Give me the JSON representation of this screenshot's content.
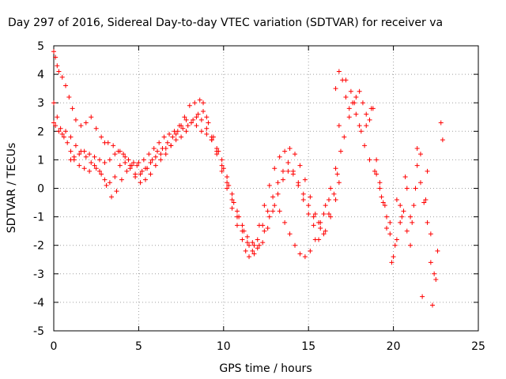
{
  "chart_data": {
    "type": "scatter",
    "title": "Day 297 of 2016, Sidereal Day-to-day VTEC variation (SDTVAR) for receiver va",
    "xlabel": "GPS time / hours",
    "ylabel": "SDTVAR / TECUs",
    "xlim": [
      0,
      25
    ],
    "ylim": [
      -5,
      5
    ],
    "xticks": [
      "0",
      "5",
      "10",
      "15",
      "20",
      "25"
    ],
    "yticks": [
      "-5",
      "-4",
      "-3",
      "-2",
      "-1",
      "0",
      "1",
      "2",
      "3",
      "4",
      "5"
    ],
    "grid": true,
    "legend": "none",
    "marker": "+",
    "color": "#ff0000",
    "series": [
      {
        "x": [
          0.0,
          0.1,
          0.2,
          0.3,
          0.5,
          0.7,
          0.9,
          1.1,
          1.3,
          1.6,
          1.9,
          2.2,
          2.5,
          2.8,
          3.0,
          3.2,
          3.5,
          3.8,
          4.1,
          4.4,
          4.7,
          5.0,
          5.3,
          5.6,
          5.9,
          6.2,
          6.5,
          6.8,
          7.1,
          7.4,
          7.7,
          8.0,
          8.3,
          8.6,
          8.8,
          9.0,
          9.3,
          9.6,
          9.9,
          10.2,
          10.5,
          10.8,
          11.1,
          11.3,
          11.5,
          11.8,
          12.1,
          12.4,
          12.7,
          13.0,
          13.3,
          13.6,
          13.9,
          14.2,
          14.5,
          14.8,
          15.1,
          15.4,
          15.7,
          16.0,
          16.3,
          16.6,
          16.8
        ],
        "y": [
          4.8,
          4.6,
          4.3,
          4.1,
          3.9,
          3.6,
          3.2,
          2.8,
          2.4,
          2.2,
          2.3,
          2.5,
          2.1,
          1.8,
          1.6,
          1.6,
          1.5,
          1.3,
          1.2,
          1.0,
          0.9,
          0.9,
          1.0,
          1.2,
          1.4,
          1.6,
          1.8,
          1.9,
          2.0,
          2.2,
          2.5,
          2.9,
          3.0,
          3.1,
          3.0,
          2.5,
          1.8,
          1.2,
          0.6,
          0.0,
          -0.7,
          -1.3,
          -1.8,
          -2.2,
          -2.4,
          -2.0,
          -1.3,
          -0.6,
          0.1,
          0.7,
          1.1,
          1.3,
          1.4,
          1.2,
          0.8,
          0.3,
          -0.3,
          -0.9,
          -1.4,
          -1.5,
          -1.0,
          -0.4,
          0.2
        ]
      },
      {
        "x": [
          0.0,
          0.2,
          0.4,
          0.6,
          0.8,
          1.0,
          1.2,
          1.5,
          1.8,
          2.1,
          2.4,
          2.7,
          3.0,
          3.3,
          3.6,
          3.9,
          4.2,
          4.5,
          4.8,
          5.1,
          5.4,
          5.7,
          6.0,
          6.3,
          6.6,
          6.9,
          7.2,
          7.5,
          7.8,
          8.1,
          8.4,
          8.7,
          9.0,
          9.3,
          9.6,
          9.9,
          10.2,
          10.5,
          10.8,
          11.1,
          11.4,
          11.7,
          12.0,
          12.3,
          12.6,
          12.9,
          13.2,
          13.5,
          13.8,
          14.1,
          14.4,
          14.7,
          15.0,
          15.3,
          15.6,
          15.9,
          16.2,
          16.5,
          16.7
        ],
        "y": [
          3.0,
          2.5,
          2.1,
          1.8,
          1.6,
          1.3,
          1.0,
          0.8,
          0.7,
          0.6,
          0.8,
          0.6,
          0.3,
          0.2,
          0.4,
          0.8,
          0.9,
          0.7,
          0.4,
          0.2,
          0.3,
          0.5,
          0.8,
          1.0,
          1.2,
          1.5,
          1.9,
          2.2,
          2.4,
          2.3,
          2.2,
          2.0,
          1.9,
          1.7,
          1.4,
          1.0,
          0.4,
          -0.2,
          -0.8,
          -1.3,
          -1.7,
          -1.9,
          -2.1,
          -1.9,
          -1.4,
          -0.8,
          -0.2,
          0.3,
          0.6,
          0.5,
          0.1,
          -0.4,
          -0.9,
          -1.3,
          -1.8,
          -1.6,
          -0.9,
          -0.2,
          0.5
        ]
      },
      {
        "x": [
          0.0,
          0.1,
          0.3,
          0.5,
          0.7,
          1.0,
          1.3,
          1.6,
          1.9,
          2.2,
          2.5,
          2.8,
          3.1,
          3.4,
          3.7,
          4.0,
          4.3,
          4.6,
          4.9,
          5.2,
          5.5,
          5.8,
          6.1,
          6.4,
          6.7,
          7.0,
          7.3,
          7.6,
          7.9,
          8.2,
          8.5,
          8.8,
          9.1,
          9.4,
          9.7,
          10.0,
          10.3,
          10.6,
          10.9,
          11.2,
          11.5,
          11.8,
          12.1,
          12.4,
          12.7,
          13.0,
          13.3,
          13.6,
          13.9,
          14.2,
          14.5,
          14.8,
          15.1,
          15.4,
          15.7,
          16.0,
          16.3,
          16.6,
          16.9
        ],
        "y": [
          2.3,
          2.2,
          2.0,
          1.9,
          2.0,
          1.8,
          1.5,
          1.3,
          1.1,
          0.9,
          0.7,
          0.5,
          0.1,
          -0.3,
          -0.1,
          0.3,
          0.6,
          0.8,
          0.8,
          0.6,
          0.7,
          1.0,
          1.3,
          1.4,
          1.6,
          1.8,
          2.0,
          2.1,
          2.2,
          2.4,
          2.6,
          2.7,
          2.3,
          1.8,
          1.3,
          0.7,
          0.1,
          -0.5,
          -1.0,
          -1.5,
          -2.0,
          -2.3,
          -2.0,
          -1.5,
          -1.0,
          -0.6,
          -0.8,
          -1.2,
          -1.6,
          -2.0,
          -2.3,
          -2.4,
          -2.2,
          -1.8,
          -1.2,
          -0.6,
          0.0,
          0.7,
          1.3
        ]
      },
      {
        "x": [
          1.0,
          1.2,
          1.5,
          1.8,
          2.1,
          2.4,
          2.7,
          3.0,
          3.3,
          3.6,
          3.9,
          4.2,
          4.5,
          4.8,
          5.1,
          5.4,
          5.7,
          6.0,
          6.3,
          6.6,
          6.9,
          7.2,
          7.5,
          7.8,
          8.1,
          8.4,
          8.7,
          9.0,
          9.3,
          9.6,
          9.9,
          10.2,
          10.5,
          10.8,
          11.1,
          11.4,
          11.7,
          12.0,
          12.3,
          12.6,
          12.9,
          13.2,
          13.5,
          13.8,
          14.1,
          14.4,
          14.7,
          15.0,
          15.3,
          15.6,
          15.9,
          16.2
        ],
        "y": [
          1.0,
          1.1,
          1.2,
          1.3,
          1.2,
          1.1,
          1.0,
          0.9,
          1.0,
          1.2,
          1.3,
          1.1,
          0.8,
          0.5,
          0.5,
          0.7,
          0.9,
          1.1,
          1.2,
          1.4,
          1.5,
          1.7,
          1.8,
          2.0,
          2.3,
          2.5,
          2.4,
          2.1,
          1.7,
          1.3,
          0.8,
          0.2,
          -0.4,
          -1.0,
          -1.5,
          -1.9,
          -2.2,
          -1.8,
          -1.3,
          -0.8,
          -0.3,
          0.2,
          0.6,
          0.9,
          0.6,
          0.2,
          -0.2,
          -0.6,
          -1.0,
          -1.2,
          -0.9,
          -0.4
        ]
      },
      {
        "x": [
          16.6,
          16.8,
          17.0,
          17.2,
          17.4,
          17.6,
          17.8,
          18.0,
          18.2,
          18.4,
          18.6,
          18.8,
          19.0,
          19.2,
          19.4,
          19.6,
          19.8,
          20.0,
          20.2,
          20.4,
          20.6,
          20.8,
          21.0,
          21.2,
          21.4,
          21.6,
          21.8,
          22.0,
          22.2,
          22.4,
          22.6
        ],
        "y": [
          3.5,
          4.1,
          3.8,
          3.2,
          2.8,
          3.0,
          3.2,
          3.4,
          3.0,
          2.6,
          2.4,
          2.8,
          1.0,
          0.2,
          -0.5,
          -1.0,
          -1.6,
          -2.4,
          -1.8,
          -1.2,
          -0.8,
          -1.5,
          -2.0,
          -0.6,
          0.8,
          0.2,
          -0.5,
          -1.2,
          -2.6,
          -3.0,
          -2.2
        ]
      },
      {
        "x": [
          16.8,
          17.1,
          17.4,
          17.7,
          18.0,
          18.3,
          18.6,
          18.9,
          19.2,
          19.5,
          19.8,
          20.1,
          20.4,
          20.7,
          21.0,
          21.3,
          21.6,
          21.9,
          22.2,
          22.5
        ],
        "y": [
          2.2,
          1.8,
          2.5,
          3.0,
          2.2,
          1.5,
          1.0,
          0.6,
          0.0,
          -0.6,
          -1.2,
          -2.0,
          -0.6,
          0.4,
          -1.0,
          0.0,
          1.2,
          -0.4,
          -1.6,
          -3.2
        ]
      },
      {
        "x": [
          17.2,
          17.5,
          17.8,
          18.1,
          18.4,
          18.7,
          19.0,
          19.3,
          19.6,
          19.9,
          20.2,
          20.5,
          20.8,
          21.1,
          21.4,
          21.7,
          22.0,
          22.3,
          22.8,
          22.9
        ],
        "y": [
          3.8,
          3.4,
          2.6,
          2.0,
          2.2,
          2.8,
          0.5,
          -0.3,
          -1.4,
          -2.6,
          -0.4,
          -1.0,
          0.0,
          -1.2,
          1.4,
          -3.8,
          0.6,
          -4.1,
          2.3,
          1.7
        ]
      }
    ]
  }
}
